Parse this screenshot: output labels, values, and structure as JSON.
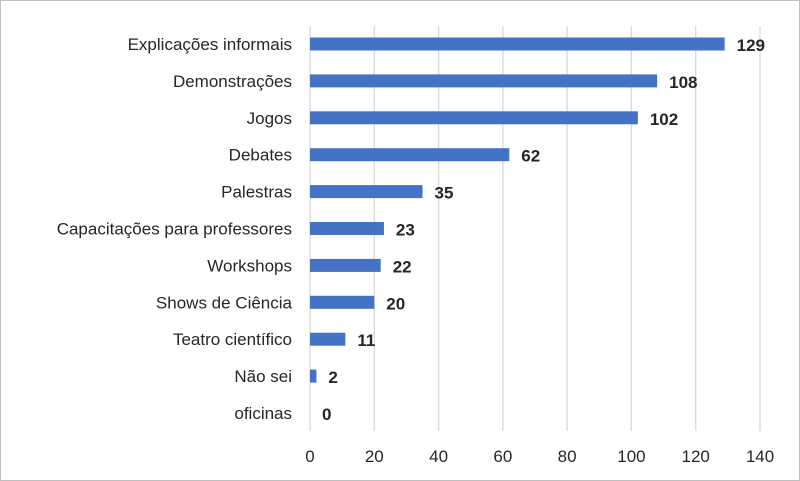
{
  "chart_data": {
    "type": "bar",
    "orientation": "horizontal",
    "title": "",
    "xlabel": "",
    "ylabel": "",
    "categories": [
      "Explicações informais",
      "Demonstrações",
      "Jogos",
      "Debates",
      "Palestras",
      "Capacitações para professores",
      "Workshops",
      "Shows de Ciência",
      "Teatro científico",
      "Não sei",
      "oficinas"
    ],
    "values": [
      129,
      108,
      102,
      62,
      35,
      23,
      22,
      20,
      11,
      2,
      0
    ],
    "xlim": [
      0,
      140
    ],
    "xticks": [
      "0",
      "20",
      "40",
      "60",
      "80",
      "100",
      "120",
      "140"
    ],
    "grid": "vertical",
    "legend": "none",
    "data_labels": true,
    "bar_color": "#4472c4",
    "grid_color": "#d9d9d9"
  }
}
